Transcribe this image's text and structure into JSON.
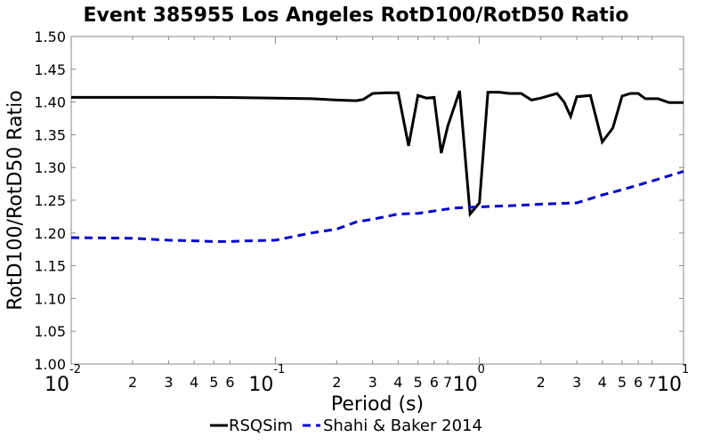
{
  "chart_data": {
    "type": "line",
    "title": "Event 385955 Los Angeles RotD100/RotD50 Ratio",
    "xlabel": "Period (s)",
    "ylabel": "RotD100/RotD50 Ratio",
    "xscale": "log",
    "xlim": [
      0.01,
      10
    ],
    "ylim": [
      1.0,
      1.5
    ],
    "grid": false,
    "legend_position": "bottom",
    "y_ticks": [
      "1.00",
      "1.05",
      "1.10",
      "1.15",
      "1.20",
      "1.25",
      "1.30",
      "1.35",
      "1.40",
      "1.45",
      "1.50"
    ],
    "x_major_ticks": [
      {
        "value": 0.01,
        "base": "10",
        "exp": "-2"
      },
      {
        "value": 0.1,
        "base": "10",
        "exp": "-1"
      },
      {
        "value": 1,
        "base": "10",
        "exp": "0"
      },
      {
        "value": 10,
        "base": "10",
        "exp": "1"
      }
    ],
    "x_minor_ticks": [
      {
        "value": 0.02,
        "label": "2"
      },
      {
        "value": 0.03,
        "label": "3"
      },
      {
        "value": 0.04,
        "label": "4"
      },
      {
        "value": 0.05,
        "label": "5"
      },
      {
        "value": 0.06,
        "label": "6"
      },
      {
        "value": 0.2,
        "label": "2"
      },
      {
        "value": 0.3,
        "label": "3"
      },
      {
        "value": 0.4,
        "label": "4"
      },
      {
        "value": 0.5,
        "label": "5"
      },
      {
        "value": 0.6,
        "label": "6"
      },
      {
        "value": 0.7,
        "label": "7"
      },
      {
        "value": 2,
        "label": "2"
      },
      {
        "value": 3,
        "label": "3"
      },
      {
        "value": 4,
        "label": "4"
      },
      {
        "value": 5,
        "label": "5"
      },
      {
        "value": 6,
        "label": "6"
      },
      {
        "value": 7,
        "label": "7"
      }
    ],
    "series": [
      {
        "name": "RSQSim",
        "color": "#000000",
        "style": "solid",
        "x": [
          0.01,
          0.02,
          0.03,
          0.05,
          0.1,
          0.15,
          0.2,
          0.25,
          0.27,
          0.3,
          0.35,
          0.4,
          0.45,
          0.5,
          0.55,
          0.6,
          0.65,
          0.7,
          0.8,
          0.9,
          1.0,
          1.1,
          1.25,
          1.4,
          1.6,
          1.8,
          2.0,
          2.4,
          2.6,
          2.8,
          3.0,
          3.5,
          4.0,
          4.5,
          5.0,
          5.5,
          6.0,
          6.5,
          7.5,
          8.5,
          10.0
        ],
        "y": [
          1.407,
          1.407,
          1.407,
          1.407,
          1.406,
          1.405,
          1.403,
          1.402,
          1.404,
          1.413,
          1.414,
          1.414,
          1.333,
          1.41,
          1.406,
          1.407,
          1.322,
          1.363,
          1.417,
          1.229,
          1.246,
          1.415,
          1.415,
          1.413,
          1.413,
          1.403,
          1.406,
          1.413,
          1.4,
          1.378,
          1.408,
          1.41,
          1.339,
          1.36,
          1.409,
          1.413,
          1.413,
          1.405,
          1.405,
          1.399,
          1.399
        ]
      },
      {
        "name": "Shahi & Baker 2014",
        "color": "#0000cc",
        "style": "dashed",
        "x": [
          0.01,
          0.02,
          0.03,
          0.04,
          0.05,
          0.06,
          0.07,
          0.075,
          0.1,
          0.15,
          0.2,
          0.25,
          0.3,
          0.4,
          0.5,
          0.75,
          1.0,
          1.5,
          2.0,
          3.0,
          4.0,
          5.0,
          7.5,
          10.0
        ],
        "y": [
          1.193,
          1.192,
          1.189,
          1.188,
          1.187,
          1.187,
          1.188,
          1.188,
          1.189,
          1.2,
          1.206,
          1.217,
          1.221,
          1.229,
          1.23,
          1.238,
          1.24,
          1.242,
          1.244,
          1.246,
          1.258,
          1.266,
          1.282,
          1.294
        ]
      }
    ]
  }
}
